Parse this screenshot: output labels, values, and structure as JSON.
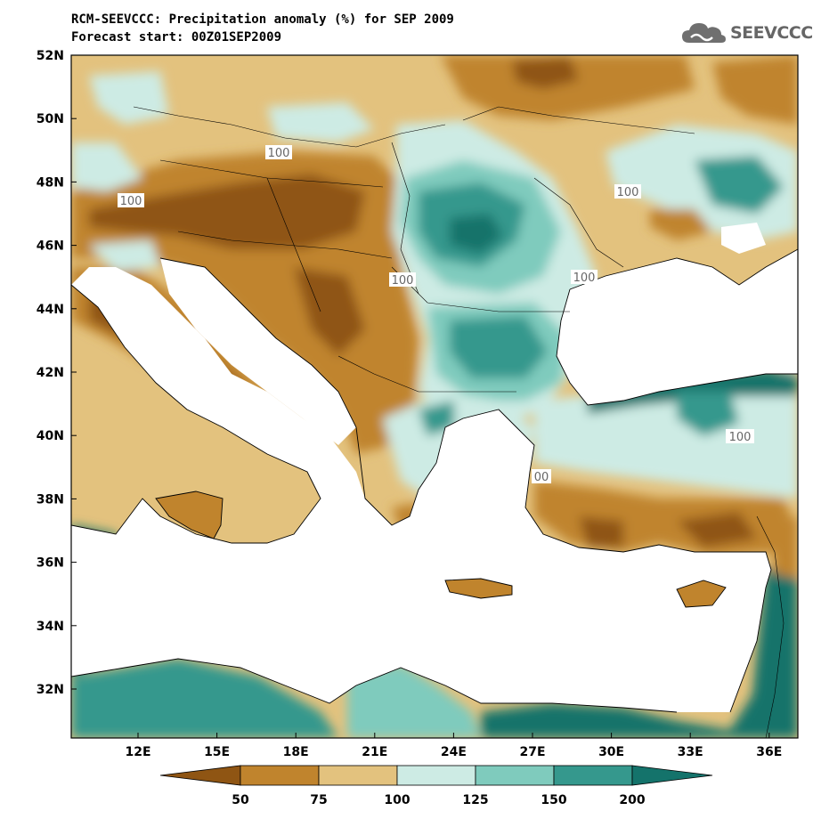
{
  "title": {
    "line1": "RCM-SEEVCCC: Precipitation anomaly (%) for SEP 2009",
    "line2": "Forecast start: 00Z01SEP2009"
  },
  "logo": {
    "text": "SEEVCCC",
    "icon": "cloud-icon"
  },
  "map": {
    "lat_labels": [
      "52N",
      "50N",
      "48N",
      "46N",
      "44N",
      "42N",
      "40N",
      "38N",
      "36N",
      "34N",
      "32N"
    ],
    "lon_labels": [
      "12E",
      "15E",
      "18E",
      "21E",
      "24E",
      "27E",
      "30E",
      "33E",
      "36E"
    ],
    "contour_labels": [
      "100",
      "100",
      "100",
      "100",
      "100",
      "100",
      "00"
    ]
  },
  "legend": {
    "ticks": [
      "50",
      "75",
      "100",
      "125",
      "150",
      "200"
    ],
    "colors": [
      "#8f5513",
      "#c0842d",
      "#e3c27e",
      "#cdebe4",
      "#7fcbbd",
      "#35988d",
      "#14736b"
    ]
  },
  "palette": {
    "dark_brown": "#8f5513",
    "brown": "#c0842d",
    "tan": "#e3c27e",
    "light_teal": "#cdebe4",
    "teal": "#7fcbbd",
    "mid_teal": "#35988d",
    "dark_teal": "#14736b"
  }
}
